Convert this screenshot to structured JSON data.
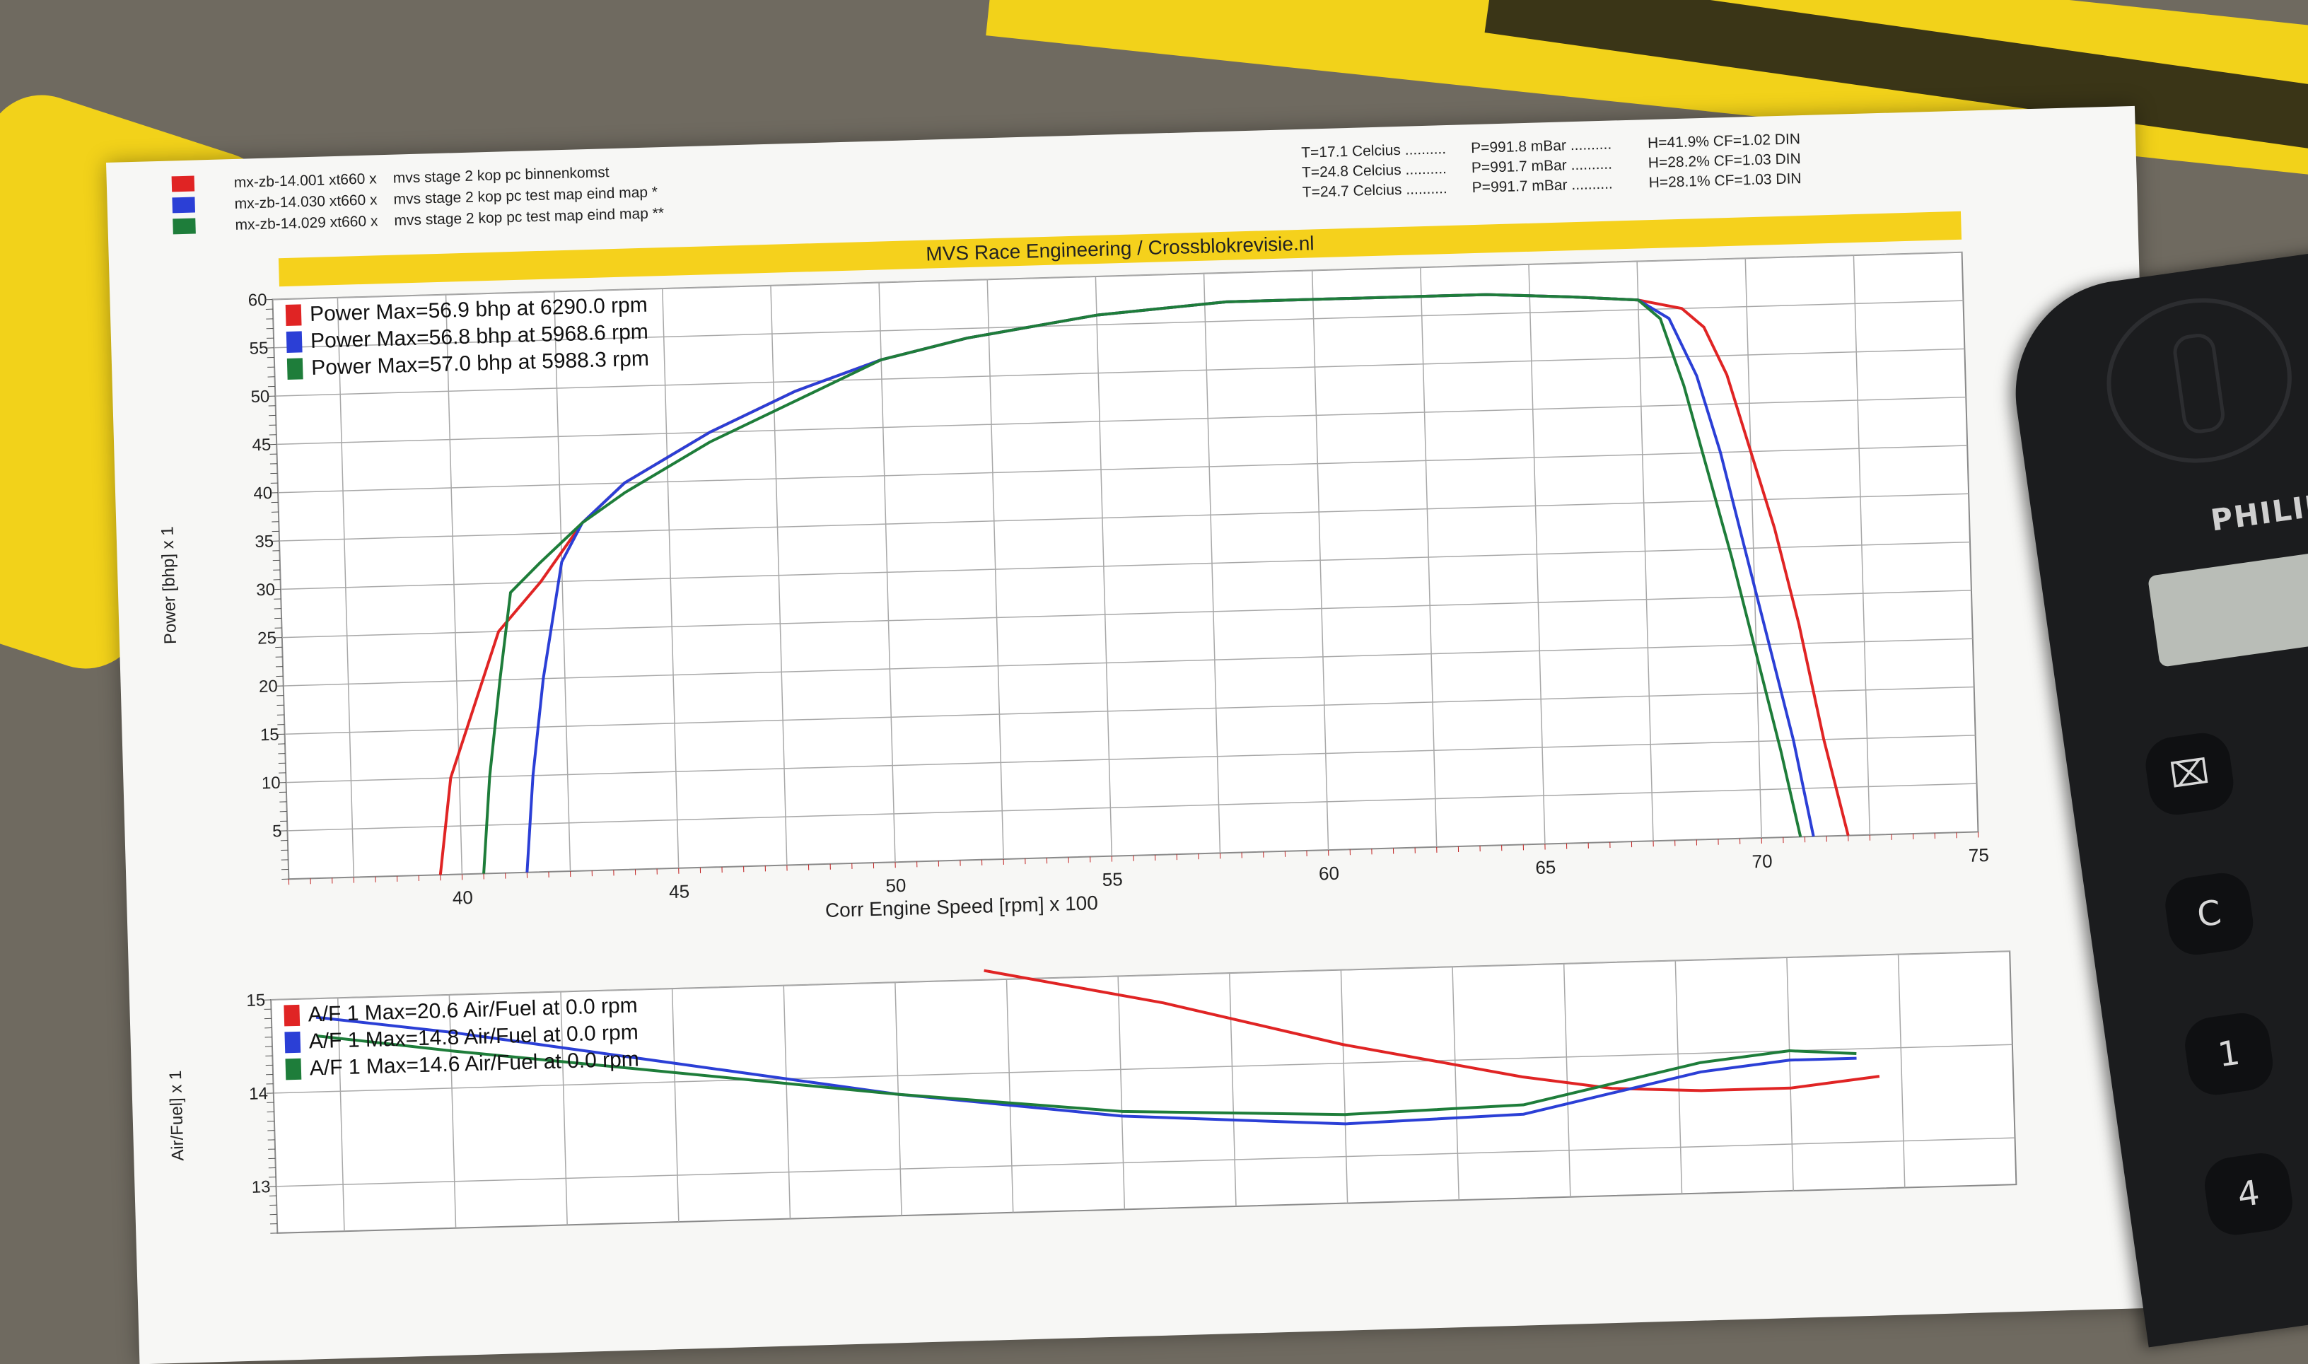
{
  "header": {
    "runs": [
      {
        "color": "#e02424",
        "id": "mx-zb-14.001 xt660 x",
        "desc": "mvs stage 2 kop pc binnenkomst"
      },
      {
        "color": "#2b3fd6",
        "id": "mx-zb-14.030 xt660 x",
        "desc": "mvs stage 2 kop pc test map eind map *"
      },
      {
        "color": "#1e7d3a",
        "id": "mx-zb-14.029 xt660 x",
        "desc": "mvs stage 2 kop pc test map eind map **"
      }
    ],
    "conditions": [
      {
        "t": "T=17.1 Celcius ..........",
        "p": "P=991.8 mBar ..........",
        "h": "H=41.9% CF=1.02 DIN"
      },
      {
        "t": "T=24.8 Celcius ..........",
        "p": "P=991.7 mBar ..........",
        "h": "H=28.2% CF=1.03 DIN"
      },
      {
        "t": "T=24.7 Celcius ..........",
        "p": "P=991.7 mBar ..........",
        "h": "H=28.1% CF=1.03 DIN"
      }
    ],
    "banner": "MVS Race Engineering / Crossblokrevisie.nl"
  },
  "phone": {
    "brand": "PHILIPS",
    "keys": [
      "⌧",
      "C",
      "1",
      "4"
    ]
  },
  "chart_data": [
    {
      "type": "line",
      "xlabel": "Corr Engine Speed [rpm] x 100",
      "ylabel": "Power [bhp] x 1",
      "xlim": [
        36,
        75
      ],
      "ylim": [
        0,
        60
      ],
      "x_ticks": [
        40,
        45,
        50,
        55,
        60,
        65,
        70,
        75
      ],
      "y_ticks": [
        5,
        10,
        15,
        20,
        25,
        30,
        35,
        40,
        45,
        50,
        55,
        60
      ],
      "grid": true,
      "legend_position": "top-left",
      "legend": [
        {
          "color": "#e02424",
          "label": "Power  Max=56.9 bhp at 6290.0 rpm"
        },
        {
          "color": "#2b3fd6",
          "label": "Power  Max=56.8 bhp at 5968.6 rpm"
        },
        {
          "color": "#1e7d3a",
          "label": "Power  Max=57.0 bhp at 5988.3 rpm"
        }
      ],
      "series": [
        {
          "color": "#e02424",
          "x": [
            39.5,
            39.8,
            40.2,
            41.0,
            42.0,
            43.0,
            44.0,
            46.0,
            48.0,
            50.0,
            52.0,
            55.0,
            58.0,
            61.0,
            64.0,
            66.0,
            67.5,
            68.5,
            69.0,
            69.5,
            70.0,
            70.5,
            71.0,
            71.5,
            72.0
          ],
          "y": [
            0,
            10,
            15,
            25,
            30,
            36,
            40,
            45,
            49,
            52,
            54,
            56,
            57,
            57,
            57,
            56.5,
            56,
            55,
            53,
            48,
            40,
            32,
            22,
            10,
            0
          ]
        },
        {
          "color": "#2b3fd6",
          "x": [
            41.5,
            41.7,
            42.0,
            42.5,
            43.0,
            44.0,
            46.0,
            48.0,
            50.0,
            52.0,
            55.0,
            58.0,
            61.0,
            64.0,
            66.0,
            67.5,
            68.2,
            68.8,
            69.3,
            69.8,
            70.3,
            70.8,
            71.2
          ],
          "y": [
            0,
            10,
            20,
            32,
            36,
            40,
            45,
            49,
            52,
            54,
            56,
            57,
            57,
            57,
            56.5,
            56,
            54,
            48,
            40,
            30,
            20,
            10,
            0
          ]
        },
        {
          "color": "#1e7d3a",
          "x": [
            40.5,
            40.7,
            41.0,
            41.3,
            42.0,
            43.0,
            44.0,
            46.0,
            48.0,
            50.0,
            52.0,
            55.0,
            58.0,
            61.0,
            64.0,
            66.0,
            67.5,
            68.0,
            68.5,
            69.0,
            69.5,
            70.0,
            70.5,
            70.9
          ],
          "y": [
            0,
            10,
            20,
            29,
            32,
            36,
            39,
            44,
            48,
            52,
            54,
            56,
            57,
            57,
            57,
            56.5,
            56,
            54,
            47,
            38,
            29,
            19,
            9,
            0
          ]
        }
      ]
    },
    {
      "type": "line",
      "ylabel": "Air/Fuel] x 1",
      "xlim": [
        36,
        75
      ],
      "ylim": [
        12.5,
        15
      ],
      "y_ticks": [
        13,
        14,
        15
      ],
      "grid": true,
      "legend_position": "top-left",
      "legend": [
        {
          "color": "#e02424",
          "label": "A/F 1  Max=20.6 Air/Fuel at 0.0 rpm"
        },
        {
          "color": "#2b3fd6",
          "label": "A/F 1  Max=14.8 Air/Fuel at 0.0 rpm"
        },
        {
          "color": "#1e7d3a",
          "label": "A/F 1  Max=14.6 Air/Fuel at 0.0 rpm"
        }
      ],
      "series": [
        {
          "color": "#e02424",
          "x": [
            52,
            56,
            60,
            64,
            66,
            68,
            70,
            72
          ],
          "y": [
            15.1,
            14.7,
            14.2,
            13.8,
            13.65,
            13.6,
            13.6,
            13.7
          ]
        },
        {
          "color": "#2b3fd6",
          "x": [
            37,
            40,
            45,
            50,
            55,
            60,
            64,
            66,
            68,
            70,
            71.5
          ],
          "y": [
            14.8,
            14.6,
            14.2,
            13.8,
            13.5,
            13.35,
            13.4,
            13.6,
            13.8,
            13.9,
            13.9
          ]
        },
        {
          "color": "#1e7d3a",
          "x": [
            37,
            40,
            45,
            50,
            55,
            60,
            64,
            66,
            68,
            70,
            71.5
          ],
          "y": [
            14.6,
            14.4,
            14.1,
            13.8,
            13.55,
            13.45,
            13.5,
            13.7,
            13.9,
            14.0,
            13.95
          ]
        }
      ]
    }
  ]
}
